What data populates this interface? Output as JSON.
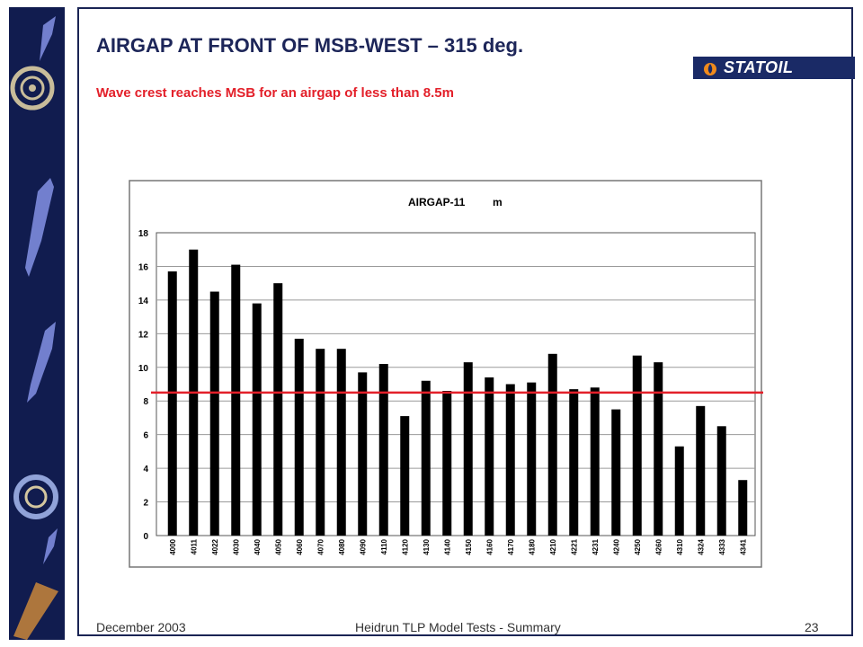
{
  "slide": {
    "title": "AIRGAP AT FRONT OF MSB-WEST – 315 deg.",
    "subtitle": "Wave crest reaches MSB for an airgap of less than 8.5m",
    "logo_text": "STATOIL",
    "footer_date": "December 2003",
    "footer_title": "Heidrun TLP Model Tests - Summary",
    "page_number": "23"
  },
  "colors": {
    "band": "#111c4f",
    "title": "#1d2659",
    "subtitle": "#e3202a",
    "bars": "#000000",
    "threshold_line": "#e3202a"
  },
  "chart_data": {
    "type": "bar",
    "title": "AIRGAP-11",
    "unit_label": "m",
    "categories": [
      "4000",
      "4011",
      "4022",
      "4030",
      "4040",
      "4050",
      "4060",
      "4070",
      "4080",
      "4090",
      "4110",
      "4120",
      "4130",
      "4140",
      "4150",
      "4160",
      "4170",
      "4180",
      "4210",
      "4221",
      "4231",
      "4240",
      "4250",
      "4260",
      "4310",
      "4324",
      "4333",
      "4341"
    ],
    "values": [
      15.7,
      17.0,
      14.5,
      16.1,
      13.8,
      15.0,
      11.7,
      11.1,
      11.1,
      9.7,
      10.2,
      7.1,
      9.2,
      8.6,
      10.3,
      9.4,
      9.0,
      9.1,
      10.8,
      8.7,
      8.8,
      7.5,
      10.7,
      10.3,
      5.3,
      7.7,
      6.5,
      3.3
    ],
    "ylim": [
      0,
      18
    ],
    "yticks": [
      0,
      2,
      4,
      6,
      8,
      10,
      12,
      14,
      16,
      18
    ],
    "grid": true,
    "threshold": 8.5
  }
}
